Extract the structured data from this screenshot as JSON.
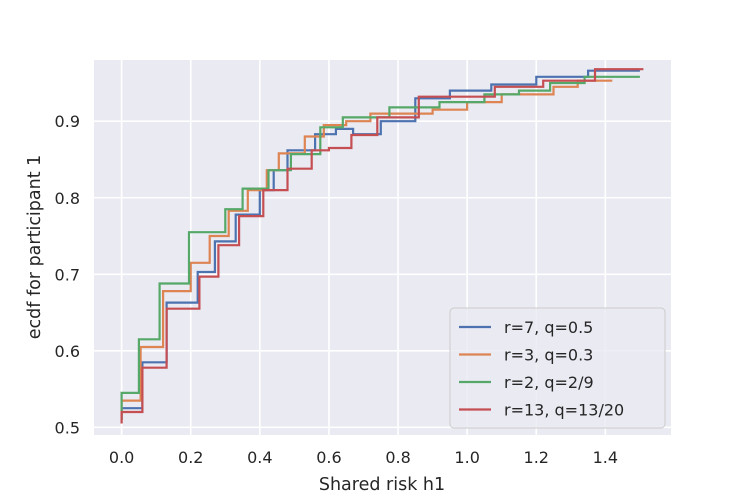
{
  "chart_data": {
    "type": "line",
    "step": true,
    "title": "",
    "xlabel": "Shared risk h1",
    "ylabel": "ecdf for participant 1",
    "xlim": [
      -0.08,
      1.59
    ],
    "ylim": [
      0.49,
      0.98
    ],
    "xticks": [
      0.0,
      0.2,
      0.4,
      0.6,
      0.8,
      1.0,
      1.2,
      1.4
    ],
    "xtick_labels": [
      "0.0",
      "0.2",
      "0.4",
      "0.6",
      "0.8",
      "1.0",
      "1.2",
      "1.4"
    ],
    "yticks": [
      0.5,
      0.6,
      0.7,
      0.8,
      0.9
    ],
    "ytick_labels": [
      "0.5",
      "0.6",
      "0.7",
      "0.8",
      "0.9"
    ],
    "grid": true,
    "legend_position": "lower-right",
    "series": [
      {
        "name": "r=7, q=0.5",
        "color": "#4c72b0",
        "points": [
          [
            0.0,
            0.51
          ],
          [
            0.0,
            0.525
          ],
          [
            0.06,
            0.525
          ],
          [
            0.06,
            0.585
          ],
          [
            0.13,
            0.585
          ],
          [
            0.13,
            0.663
          ],
          [
            0.22,
            0.663
          ],
          [
            0.22,
            0.703
          ],
          [
            0.27,
            0.703
          ],
          [
            0.27,
            0.743
          ],
          [
            0.33,
            0.743
          ],
          [
            0.33,
            0.778
          ],
          [
            0.4,
            0.778
          ],
          [
            0.4,
            0.81
          ],
          [
            0.44,
            0.81
          ],
          [
            0.44,
            0.836
          ],
          [
            0.48,
            0.836
          ],
          [
            0.48,
            0.862
          ],
          [
            0.56,
            0.862
          ],
          [
            0.56,
            0.883
          ],
          [
            0.62,
            0.883
          ],
          [
            0.62,
            0.89
          ],
          [
            0.67,
            0.89
          ],
          [
            0.67,
            0.883
          ],
          [
            0.75,
            0.883
          ],
          [
            0.75,
            0.9
          ],
          [
            0.85,
            0.9
          ],
          [
            0.85,
            0.93
          ],
          [
            0.95,
            0.93
          ],
          [
            0.95,
            0.94
          ],
          [
            1.07,
            0.94
          ],
          [
            1.07,
            0.948
          ],
          [
            1.2,
            0.948
          ],
          [
            1.2,
            0.958
          ],
          [
            1.35,
            0.958
          ],
          [
            1.35,
            0.966
          ],
          [
            1.5,
            0.966
          ]
        ]
      },
      {
        "name": "r=3, q=0.3",
        "color": "#dd8452",
        "points": [
          [
            0.0,
            0.51
          ],
          [
            0.0,
            0.535
          ],
          [
            0.055,
            0.535
          ],
          [
            0.055,
            0.605
          ],
          [
            0.12,
            0.605
          ],
          [
            0.12,
            0.678
          ],
          [
            0.2,
            0.678
          ],
          [
            0.2,
            0.715
          ],
          [
            0.255,
            0.715
          ],
          [
            0.255,
            0.75
          ],
          [
            0.31,
            0.75
          ],
          [
            0.31,
            0.783
          ],
          [
            0.365,
            0.783
          ],
          [
            0.365,
            0.81
          ],
          [
            0.42,
            0.81
          ],
          [
            0.42,
            0.836
          ],
          [
            0.455,
            0.836
          ],
          [
            0.455,
            0.858
          ],
          [
            0.53,
            0.858
          ],
          [
            0.53,
            0.88
          ],
          [
            0.585,
            0.88
          ],
          [
            0.585,
            0.895
          ],
          [
            0.65,
            0.895
          ],
          [
            0.65,
            0.9
          ],
          [
            0.72,
            0.9
          ],
          [
            0.72,
            0.91
          ],
          [
            0.82,
            0.91
          ],
          [
            0.82,
            0.91
          ],
          [
            0.9,
            0.91
          ],
          [
            0.9,
            0.915
          ],
          [
            1.0,
            0.915
          ],
          [
            1.0,
            0.925
          ],
          [
            1.1,
            0.925
          ],
          [
            1.1,
            0.935
          ],
          [
            1.25,
            0.935
          ],
          [
            1.25,
            0.945
          ],
          [
            1.32,
            0.945
          ],
          [
            1.32,
            0.953
          ],
          [
            1.42,
            0.953
          ]
        ]
      },
      {
        "name": "r=2, q=2/9",
        "color": "#55a868",
        "points": [
          [
            0.0,
            0.51
          ],
          [
            0.0,
            0.545
          ],
          [
            0.05,
            0.545
          ],
          [
            0.05,
            0.615
          ],
          [
            0.11,
            0.615
          ],
          [
            0.11,
            0.688
          ],
          [
            0.195,
            0.688
          ],
          [
            0.195,
            0.755
          ],
          [
            0.3,
            0.755
          ],
          [
            0.3,
            0.785
          ],
          [
            0.35,
            0.785
          ],
          [
            0.35,
            0.812
          ],
          [
            0.425,
            0.812
          ],
          [
            0.425,
            0.836
          ],
          [
            0.49,
            0.836
          ],
          [
            0.49,
            0.857
          ],
          [
            0.575,
            0.857
          ],
          [
            0.575,
            0.892
          ],
          [
            0.64,
            0.892
          ],
          [
            0.64,
            0.905
          ],
          [
            0.7,
            0.905
          ],
          [
            0.7,
            0.905
          ],
          [
            0.775,
            0.905
          ],
          [
            0.775,
            0.918
          ],
          [
            0.92,
            0.918
          ],
          [
            0.92,
            0.925
          ],
          [
            1.05,
            0.925
          ],
          [
            1.05,
            0.935
          ],
          [
            1.15,
            0.935
          ],
          [
            1.15,
            0.94
          ],
          [
            1.24,
            0.94
          ],
          [
            1.24,
            0.95
          ],
          [
            1.34,
            0.95
          ],
          [
            1.34,
            0.958
          ],
          [
            1.5,
            0.958
          ]
        ]
      },
      {
        "name": "r=13, q=13/20",
        "color": "#c44e52",
        "points": [
          [
            0.0,
            0.505
          ],
          [
            0.0,
            0.52
          ],
          [
            0.06,
            0.52
          ],
          [
            0.06,
            0.578
          ],
          [
            0.13,
            0.578
          ],
          [
            0.13,
            0.655
          ],
          [
            0.225,
            0.655
          ],
          [
            0.225,
            0.697
          ],
          [
            0.28,
            0.697
          ],
          [
            0.28,
            0.738
          ],
          [
            0.34,
            0.738
          ],
          [
            0.34,
            0.776
          ],
          [
            0.41,
            0.776
          ],
          [
            0.41,
            0.81
          ],
          [
            0.48,
            0.81
          ],
          [
            0.48,
            0.838
          ],
          [
            0.55,
            0.838
          ],
          [
            0.55,
            0.862
          ],
          [
            0.6,
            0.862
          ],
          [
            0.6,
            0.865
          ],
          [
            0.665,
            0.865
          ],
          [
            0.665,
            0.882
          ],
          [
            0.74,
            0.882
          ],
          [
            0.74,
            0.905
          ],
          [
            0.86,
            0.905
          ],
          [
            0.86,
            0.932
          ],
          [
            0.97,
            0.932
          ],
          [
            0.97,
            0.932
          ],
          [
            1.08,
            0.932
          ],
          [
            1.08,
            0.945
          ],
          [
            1.22,
            0.945
          ],
          [
            1.22,
            0.953
          ],
          [
            1.37,
            0.953
          ],
          [
            1.37,
            0.968
          ],
          [
            1.51,
            0.968
          ]
        ]
      }
    ]
  }
}
